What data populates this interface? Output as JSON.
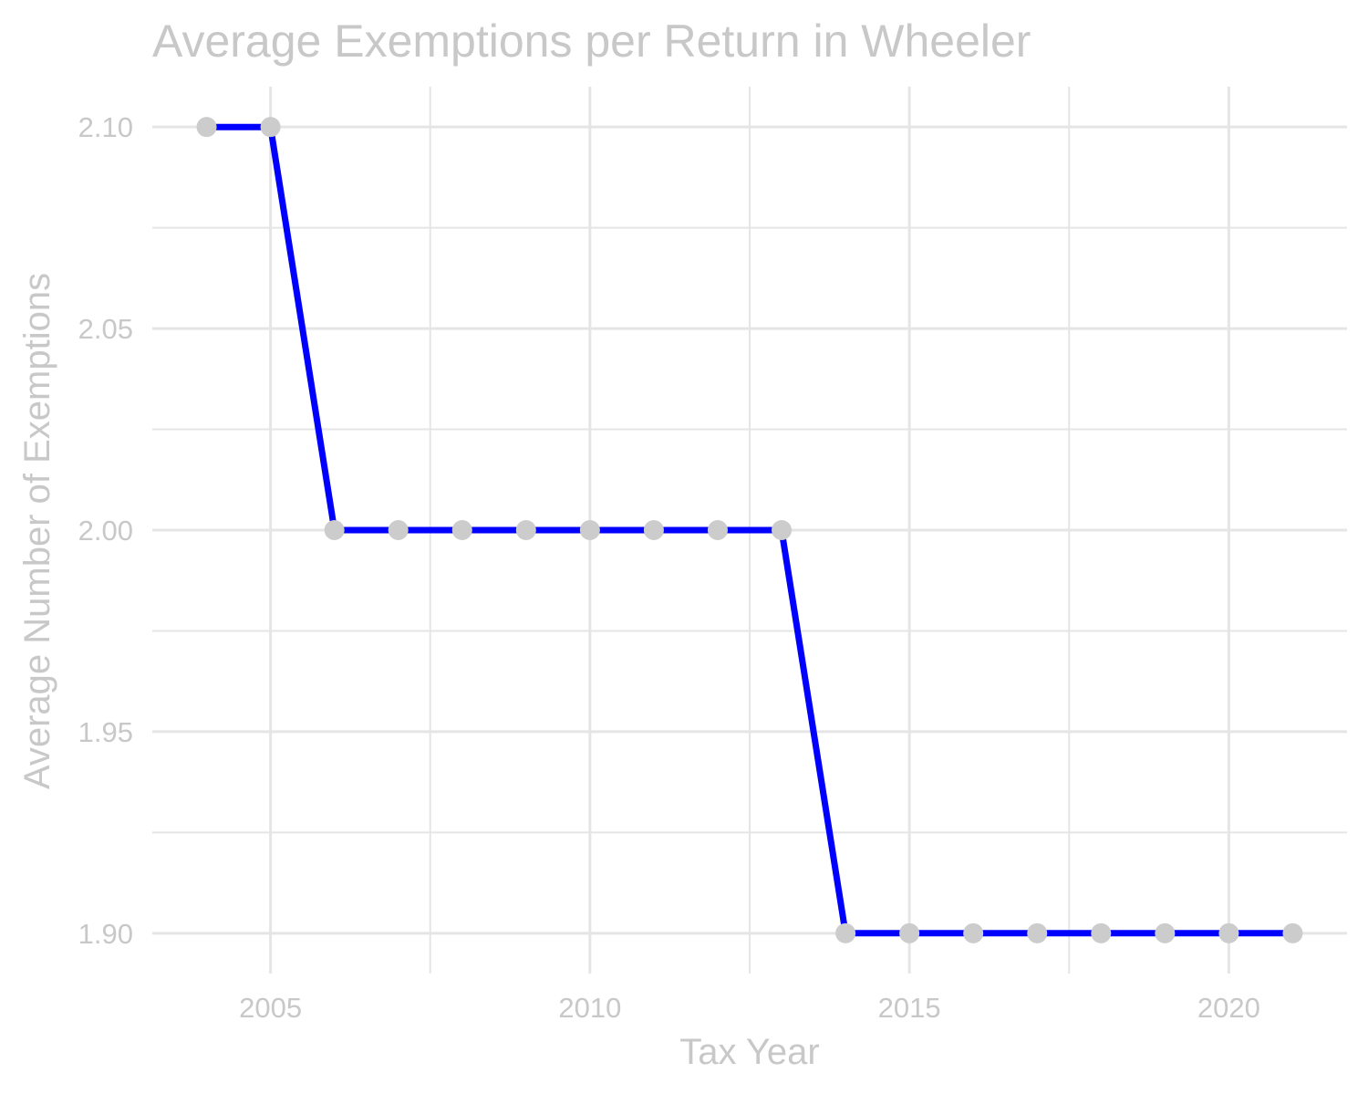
{
  "colors": {
    "line": "#0000ff",
    "point": "#cccccc",
    "grid": "#e5e5e5",
    "text": "#c8c8c8",
    "background": "#ffffff"
  },
  "chart_data": {
    "type": "line",
    "title": "Average Exemptions per Return in Wheeler",
    "xlabel": "Tax Year",
    "ylabel": "Average Number of Exemptions",
    "x": [
      2004,
      2005,
      2006,
      2007,
      2008,
      2009,
      2010,
      2011,
      2012,
      2013,
      2014,
      2015,
      2016,
      2017,
      2018,
      2019,
      2020,
      2021
    ],
    "series": [
      {
        "values": [
          2.1,
          2.1,
          2.0,
          2.0,
          2.0,
          2.0,
          2.0,
          2.0,
          2.0,
          2.0,
          1.9,
          1.9,
          1.9,
          1.9,
          1.9,
          1.9,
          1.9,
          1.9
        ]
      }
    ],
    "xlim": [
      2003.15,
      2021.85
    ],
    "ylim": [
      1.89,
      2.11
    ],
    "x_ticks": [
      2005,
      2010,
      2015,
      2020
    ],
    "x_tick_labels": [
      "2005",
      "2010",
      "2015",
      "2020"
    ],
    "x_minor_ticks": [
      2007.5,
      2012.5,
      2017.5
    ],
    "y_ticks": [
      1.9,
      1.95,
      2.0,
      2.05,
      2.1
    ],
    "y_tick_labels": [
      "1.90",
      "1.95",
      "2.00",
      "2.05",
      "2.10"
    ],
    "y_minor_ticks": [
      1.925,
      1.975,
      2.025,
      2.075
    ],
    "grid": true,
    "legend": "none"
  }
}
